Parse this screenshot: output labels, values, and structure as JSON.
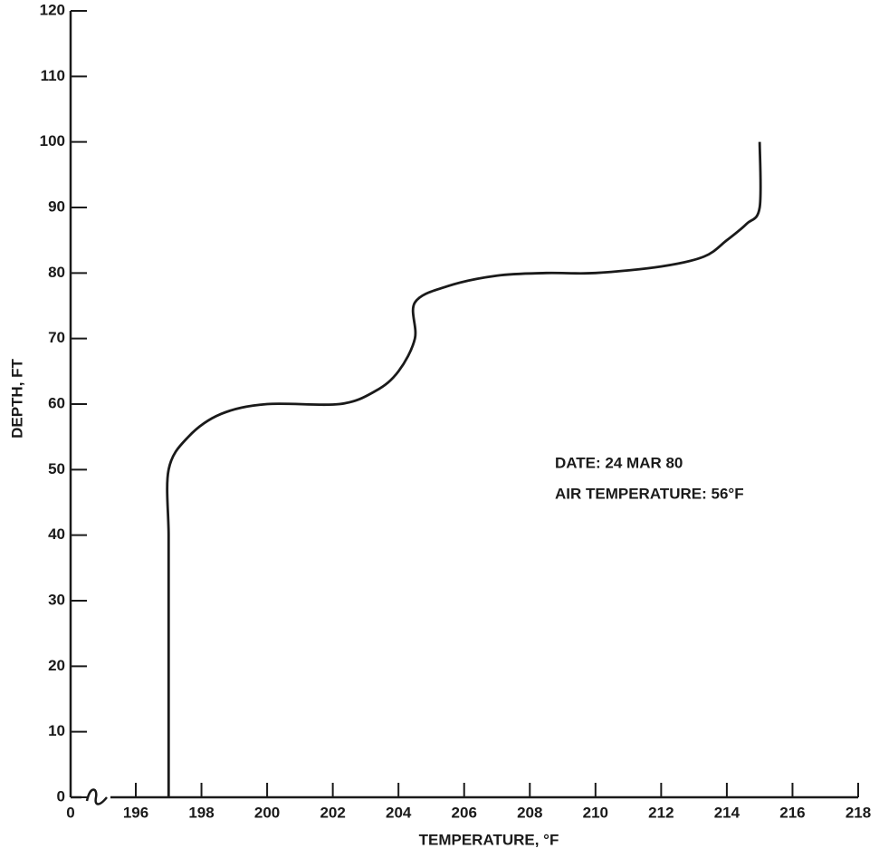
{
  "chart_data": {
    "type": "line",
    "x_label": "TEMPERATURE, °F",
    "y_label": "DEPTH, FT",
    "annotations": [
      "DATE: 24 MAR 80",
      "AIR TEMPERATURE: 56°F"
    ],
    "axis_break": [
      0,
      196
    ],
    "xlim": [
      0,
      218
    ],
    "xticks": [
      0,
      196,
      198,
      200,
      202,
      204,
      206,
      208,
      210,
      212,
      214,
      216,
      218
    ],
    "ylim": [
      0,
      120
    ],
    "yticks": [
      0,
      10,
      20,
      30,
      40,
      50,
      60,
      70,
      80,
      90,
      100,
      110,
      120
    ],
    "grid": false,
    "series": [
      {
        "color": "#1a1a1a",
        "x": [
          197,
          197,
          197,
          197,
          197,
          197,
          197.6,
          198.6,
          200,
          202.2,
          203.3,
          204,
          204.5,
          204.5,
          205.5,
          207,
          208.5,
          210,
          212,
          213.3,
          214,
          214.6,
          215,
          215
        ],
        "values": [
          0,
          10,
          20,
          30,
          40,
          50,
          55,
          58.5,
          60,
          60,
          62,
          65,
          70,
          75.5,
          78,
          79.6,
          80,
          80,
          81,
          82.5,
          85,
          87.5,
          90,
          100
        ]
      }
    ]
  }
}
